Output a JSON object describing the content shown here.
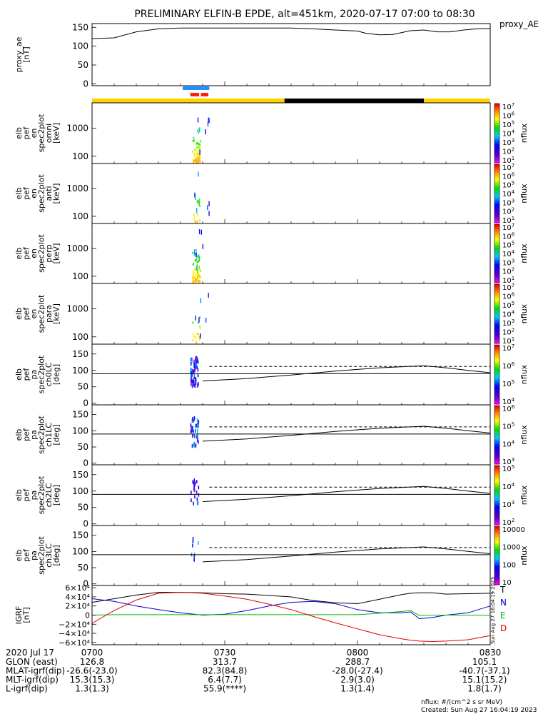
{
  "title": "PRELIMINARY ELFIN-B EPDE, alt=451km, 2020-07-17 07:00 to 08:30",
  "chart_data": [
    {
      "type": "line",
      "panel": "proxy_ae",
      "ylabel": [
        "proxy_ae",
        "[nT]"
      ],
      "legend_label": "proxy_AE",
      "ylim": [
        -5,
        160
      ],
      "yticks": [
        0,
        50,
        100,
        150
      ],
      "x_minutes": [
        0,
        5,
        10,
        15,
        20,
        25,
        30,
        35,
        40,
        45,
        50,
        55,
        60,
        62,
        65,
        68,
        72,
        75,
        78,
        81,
        84,
        87,
        90
      ],
      "values": [
        120,
        122,
        138,
        146,
        148,
        148,
        148,
        148,
        148,
        148,
        146,
        143,
        140,
        134,
        130,
        131,
        141,
        143,
        138,
        138,
        143,
        146,
        147
      ]
    },
    {
      "type": "bar",
      "panel": "science-zone-bars",
      "note_colors": [
        "#ffd200",
        "#000000",
        "#1e90ff",
        "#ff2010"
      ],
      "segments": [
        {
          "color": "#ffd200",
          "start_min": 0,
          "end_min": 43.5
        },
        {
          "color": "#000000",
          "start_min": 43.5,
          "end_min": 75
        },
        {
          "color": "#ffd200",
          "start_min": 75,
          "end_min": 90
        }
      ],
      "blue_bar": [
        20.5,
        26.5
      ],
      "red_bars": [
        [
          22.2,
          24.2
        ],
        [
          24.6,
          26.3
        ]
      ]
    },
    {
      "type": "heatmap",
      "panel": "energy-spectrograms",
      "ylabel_template": [
        "elb",
        "pef",
        "en",
        "spec2plot",
        "%s",
        "[keV]"
      ],
      "ylabel_unit": "[keV]",
      "yticks": [
        100,
        1000
      ],
      "ylim_log": [
        55,
        8000
      ],
      "panels": [
        {
          "name": "omni",
          "colorbar_ticks": [
            "10^1",
            "10^2",
            "10^3",
            "10^4",
            "10^5",
            "10^6",
            "10^7"
          ]
        },
        {
          "name": "anti",
          "colorbar_ticks": [
            "10^1",
            "10^2",
            "10^3",
            "10^4",
            "10^5",
            "10^6",
            "10^7"
          ]
        },
        {
          "name": "perp",
          "colorbar_ticks": [
            "10^1",
            "10^2",
            "10^3",
            "10^4",
            "10^5",
            "10^6",
            "10^7"
          ]
        },
        {
          "name": "para",
          "colorbar_ticks": [
            "10^1",
            "10^2",
            "10^3",
            "10^4",
            "10^5",
            "10^6",
            "10^7"
          ]
        }
      ],
      "colorbar_label": "nflux"
    },
    {
      "type": "heatmap",
      "panel": "pitch-angle-spectrograms",
      "ylabel_template": [
        "elb",
        "pef",
        "pa",
        "spec2plot",
        "%s",
        "[deg]"
      ],
      "yticks": [
        0,
        50,
        100,
        150
      ],
      "ylim": [
        -5,
        180
      ],
      "solid_line_deg": 90,
      "dashed_line_deg": 112,
      "losscone_curve": {
        "x_minutes": [
          25,
          35,
          45,
          55,
          65,
          75,
          80,
          85,
          90
        ],
        "deg": [
          68,
          75,
          86,
          98,
          108,
          114,
          108,
          100,
          93
        ]
      },
      "panels": [
        {
          "name": "ch0LC",
          "colorbar_ticks": [
            "10^4",
            "10^5",
            "10^6",
            "10^7"
          ]
        },
        {
          "name": "ch1LC",
          "colorbar_ticks": [
            "10^3",
            "10^4",
            "10^5",
            "10^6"
          ]
        },
        {
          "name": "ch2LC",
          "colorbar_ticks": [
            "10^2",
            "10^3",
            "10^4",
            "10^5"
          ]
        },
        {
          "name": "ch3LC",
          "colorbar_ticks": [
            "10",
            "100",
            "1000",
            "10000"
          ]
        }
      ],
      "colorbar_label": "nflux"
    },
    {
      "type": "line",
      "panel": "IGRF",
      "ylabel": [
        "IGRF",
        "[nT]"
      ],
      "ylim": [
        -65000,
        65000
      ],
      "yticks": [
        60000,
        40000,
        20000,
        0,
        -20000,
        -40000,
        -60000
      ],
      "ytick_labels": [
        "6×10⁴",
        "4×10⁴",
        "2×10⁴",
        "0",
        "−2×10⁴",
        "−4×10⁴",
        "−6×10⁴"
      ],
      "x_minutes": [
        0,
        5,
        10,
        15,
        20,
        25,
        30,
        35,
        40,
        45,
        50,
        55,
        60,
        65,
        70,
        72,
        74,
        77,
        80,
        85,
        90
      ],
      "series": [
        {
          "name": "T",
          "color": "#000000",
          "values": [
            28000,
            36000,
            44000,
            50000,
            50000,
            49000,
            47000,
            46000,
            43000,
            40000,
            32000,
            27000,
            25000,
            35000,
            45000,
            48000,
            49000,
            49000,
            46000,
            47000,
            48000
          ]
        },
        {
          "name": "N",
          "color": "#0000cc",
          "values": [
            36000,
            30000,
            20000,
            12000,
            5000,
            0,
            2000,
            10000,
            20000,
            28000,
            30000,
            25000,
            12000,
            5000,
            5000,
            7000,
            -8000,
            -5000,
            0,
            5000,
            20000
          ]
        },
        {
          "name": "E",
          "color": "#00bb00",
          "values": [
            0,
            1000,
            1000,
            1000,
            1000,
            1000,
            1000,
            1000,
            1000,
            1000,
            1000,
            1000,
            1000,
            4000,
            8000,
            10000,
            -1000,
            0,
            0,
            0,
            0
          ]
        },
        {
          "name": "D",
          "color": "#dd0000",
          "values": [
            -18000,
            10000,
            33000,
            48000,
            50000,
            48000,
            42000,
            35000,
            24000,
            12000,
            -3000,
            -17000,
            -30000,
            -43000,
            -52000,
            -55000,
            -57000,
            -58000,
            -57000,
            -54000,
            -45000
          ]
        }
      ]
    }
  ],
  "x_axis": {
    "tick_minutes": [
      0,
      30,
      60,
      90
    ],
    "tick_labels": [
      "0700",
      "0730",
      "0800",
      "0830"
    ],
    "date_label": "2020 Jul 17",
    "rows": [
      {
        "label": "GLON (east)",
        "values": [
          "126.8",
          "313.7",
          "288.7",
          "105.1"
        ]
      },
      {
        "label": "MLAT-igrf(dip)",
        "values": [
          "-26.6(-23.0)",
          "82.3(84.8)",
          "-28.0(-27.4)",
          "-40.7(-37.1)"
        ]
      },
      {
        "label": "MLT-igrf(dip)",
        "values": [
          "15.3(15.3)",
          "6.4(7.7)",
          "2.9(3.0)",
          "15.1(15.2)"
        ]
      },
      {
        "label": "L-igrf(dip)",
        "values": [
          "1.3(1.3)",
          "55.9(****)",
          "1.3(1.4)",
          "1.8(1.7)"
        ]
      }
    ]
  },
  "footer": {
    "units": "nflux: #/(cm^2 s sr MeV)",
    "created": "Created: Sun Aug 27 16:04:19 2023",
    "side_stamp": "Sun Aug 27 16:04:19 2023"
  }
}
